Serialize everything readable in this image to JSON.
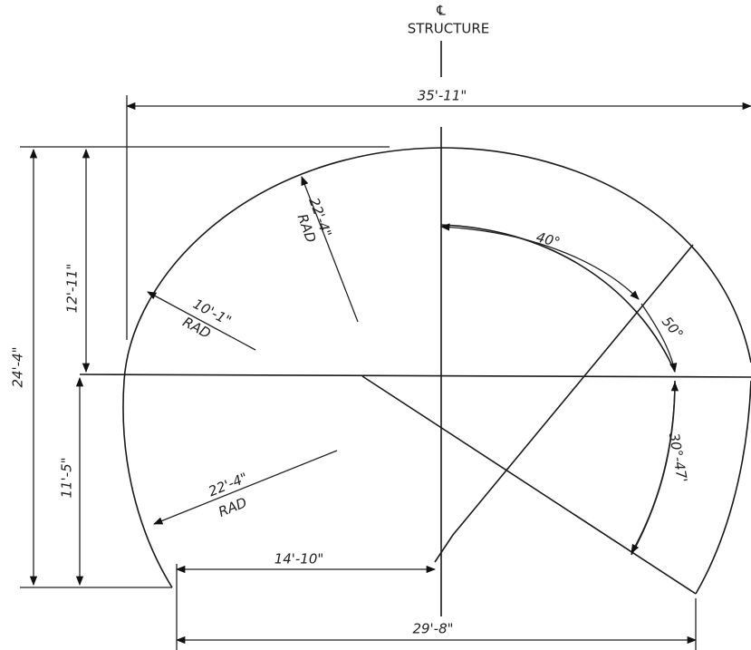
{
  "centerline": {
    "symbol": "℄",
    "label": "STRUCTURE"
  },
  "dimensions": {
    "overall_width": "35'-11\"",
    "overall_height": "24'-4\"",
    "upper_height": "12'-11\"",
    "lower_height": "11'-5\"",
    "crown_radius": {
      "value": "22'-4\"",
      "unit": "RAD"
    },
    "side_radius": {
      "value": "10'-1\"",
      "unit": "RAD"
    },
    "invert_radius": {
      "value": "22'-4\"",
      "unit": "RAD"
    },
    "angle_top": "40°",
    "angle_middle": "50°",
    "angle_bottom": "30°-47'",
    "half_base": "14'-10\"",
    "base_width": "29'-8\""
  }
}
